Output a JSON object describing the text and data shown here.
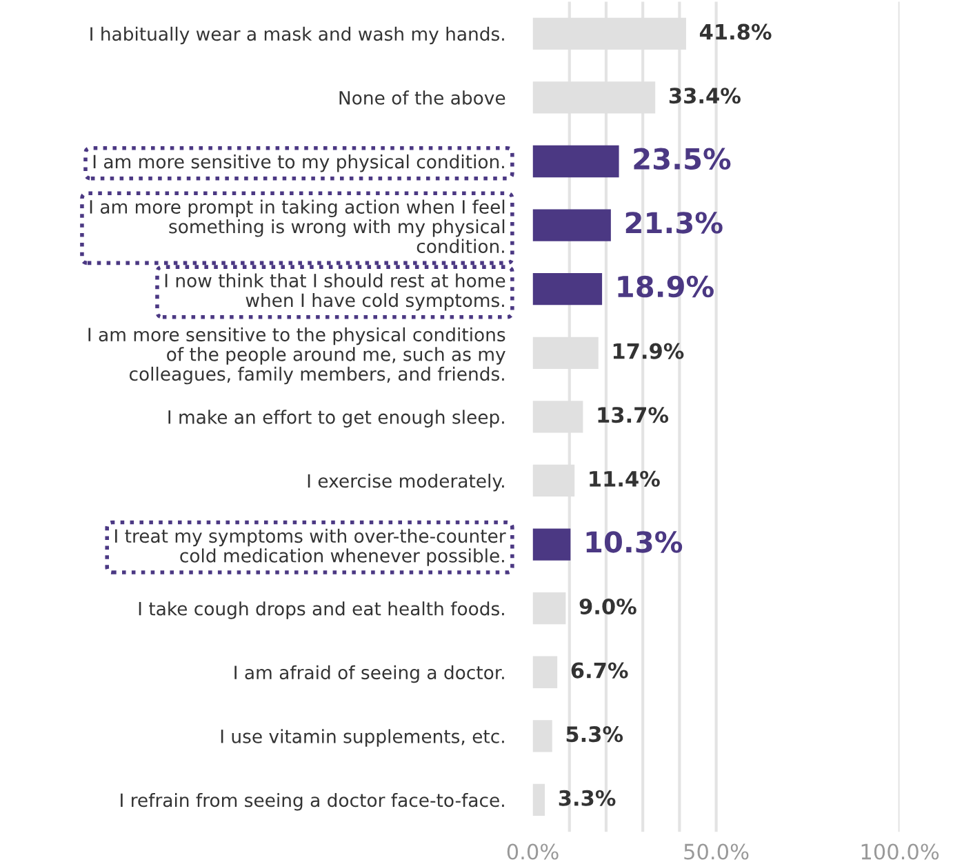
{
  "chart_data": {
    "type": "bar",
    "orientation": "horizontal",
    "categories": [
      "I habitually wear a mask and wash my hands.",
      "None of the above",
      "I am more sensitive to my physical condition.",
      "I am more prompt in taking action when I feel\nsomething is wrong with my physical\ncondition.",
      "I now think that I should rest at home\nwhen I have cold symptoms.",
      "I am more sensitive to the physical conditions\nof the people around me, such as my\ncolleagues, family members, and friends.",
      "I make an effort to get enough sleep.",
      "I exercise moderately.",
      "I treat my symptoms with over-the-counter\ncold medication whenever possible.",
      "I take cough drops and eat health foods.",
      "I am afraid of seeing a doctor.",
      "I use vitamin supplements, etc.",
      "I refrain from seeing a doctor face-to-face."
    ],
    "values": [
      41.8,
      33.4,
      23.5,
      21.3,
      18.9,
      17.9,
      13.7,
      11.4,
      10.3,
      9.0,
      6.7,
      5.3,
      3.3
    ],
    "value_labels": [
      "41.8%",
      "33.4%",
      "23.5%",
      "21.3%",
      "18.9%",
      "17.9%",
      "13.7%",
      "11.4%",
      "10.3%",
      "9.0%",
      "6.7%",
      "5.3%",
      "3.3%"
    ],
    "colors": [
      "#e0e0e0",
      "#e0e0e0",
      "#4b3883",
      "#4b3883",
      "#4b3883",
      "#e0e0e0",
      "#e0e0e0",
      "#e0e0e0",
      "#4b3883",
      "#e0e0e0",
      "#e0e0e0",
      "#e0e0e0",
      "#e0e0e0"
    ],
    "xlim": [
      0,
      100
    ],
    "xticks": [
      {
        "value": 0,
        "label": "0.0%"
      },
      {
        "value": 10,
        "label": null
      },
      {
        "value": 20,
        "label": null
      },
      {
        "value": 30,
        "label": null
      },
      {
        "value": 40,
        "label": null
      },
      {
        "value": 50,
        "label": "50.0%"
      },
      {
        "value": 100,
        "label": "100.0%"
      }
    ],
    "grid": "x"
  }
}
